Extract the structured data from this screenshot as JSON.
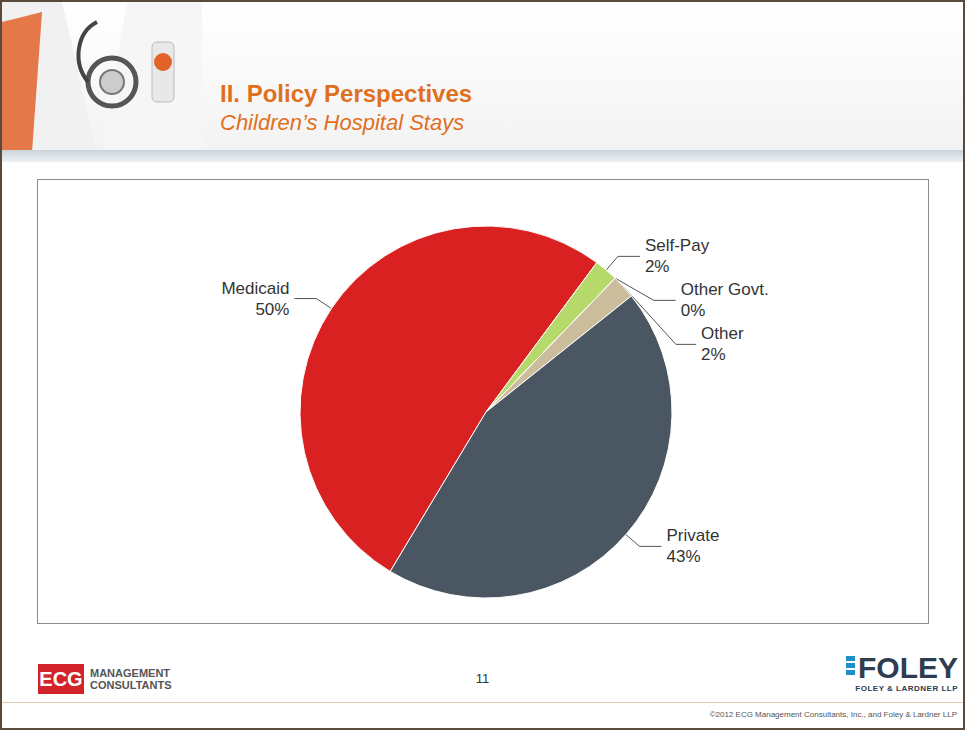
{
  "slide": {
    "heading": "II. Policy Perspectives",
    "subheading": "Children’s Hospital Stays",
    "page": "11",
    "logo_left": [
      "ECG",
      "MANAGEMENT",
      "CONSULTANTS"
    ],
    "logo_right": [
      "FOLEY",
      "FOLEY & LARDNER LLP"
    ],
    "copyright": "©2012 ECG Management Consultants, Inc., and Foley & Lardner LLP"
  },
  "chart_data": {
    "type": "pie",
    "categories": [
      "Medicaid",
      "Self-Pay",
      "Other Govt.",
      "Other",
      "Private"
    ],
    "values": [
      50,
      2,
      0,
      2,
      43
    ],
    "value_labels": [
      "50%",
      "2%",
      "0%",
      "2%",
      "43%"
    ],
    "colors": [
      "#d92121",
      "#b6d96b",
      "#8aa05a",
      "#cbbd9c",
      "#4a5661"
    ],
    "data_labels": true
  }
}
